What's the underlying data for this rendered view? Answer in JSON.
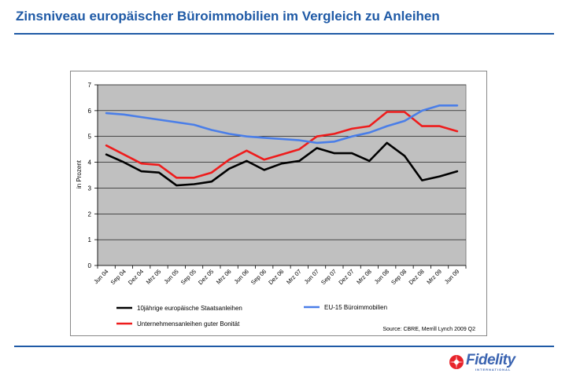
{
  "page": {
    "title": "Zinsniveau europäischer Büroimmobilien im Vergleich zu Anleihen",
    "accent_color": "#1f5aa6"
  },
  "logo": {
    "wordmark": "Fidelity",
    "tagline": "INTERNATIONAL",
    "color": "#3a63b0",
    "mark_color": "#e8232a"
  },
  "chart_data": {
    "type": "line",
    "title": "",
    "xlabel": "",
    "ylabel": "in Prozent",
    "ylim": [
      0,
      7
    ],
    "yticks": [
      0,
      1,
      2,
      3,
      4,
      5,
      6,
      7
    ],
    "grid": true,
    "plot_background": "#c0c0c0",
    "categories": [
      "Jun 04",
      "Sep 04",
      "Dez 04",
      "Mrz 05",
      "Jun 05",
      "Sep 05",
      "Dez 05",
      "Mrz 06",
      "Jun 06",
      "Sep 06",
      "Dez 06",
      "Mrz 07",
      "Jun 07",
      "Sep 07",
      "Dez 07",
      "Mrz 08",
      "Jun 08",
      "Sep 08",
      "Dez 08",
      "Mrz 09",
      "Jun 09"
    ],
    "series": [
      {
        "name": "10jährige europäische Staatsanleihen",
        "color": "#000000",
        "values": [
          4.3,
          4.0,
          3.65,
          3.6,
          3.1,
          3.15,
          3.25,
          3.75,
          4.05,
          3.7,
          3.95,
          4.05,
          4.55,
          4.35,
          4.35,
          4.05,
          4.75,
          4.25,
          3.3,
          3.45,
          3.65
        ]
      },
      {
        "name": "Unternehmensanleihen guter Bonität",
        "color": "#ee1c1c",
        "values": [
          4.65,
          4.3,
          3.95,
          3.9,
          3.4,
          3.4,
          3.6,
          4.1,
          4.45,
          4.1,
          4.3,
          4.5,
          5.0,
          5.1,
          5.3,
          5.4,
          5.95,
          5.95,
          5.4,
          5.4,
          5.2
        ]
      },
      {
        "name": "EU-15 Büroimmobilien",
        "color": "#4a7ee8",
        "values": [
          5.9,
          5.85,
          5.75,
          5.65,
          5.55,
          5.45,
          5.25,
          5.1,
          5.0,
          4.95,
          4.9,
          4.85,
          4.75,
          4.8,
          5.0,
          5.15,
          5.4,
          5.6,
          6.0,
          6.2,
          6.2
        ]
      }
    ],
    "source": "Source: CBRE, Merrill Lynch 2009 Q2"
  }
}
